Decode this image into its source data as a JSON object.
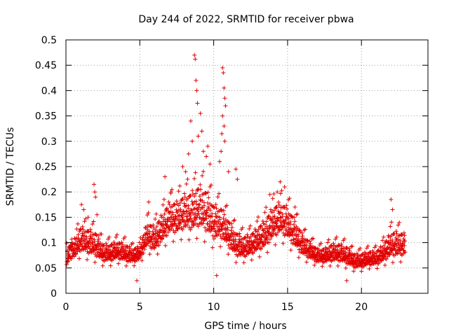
{
  "chart_data": {
    "type": "scatter",
    "title": "Day 244 of 2022, SRMTID for receiver pbwa",
    "xlabel": "GPS time / hours",
    "ylabel": "SRMTID / TECUs",
    "xlim": [
      0,
      24.5
    ],
    "ylim": [
      0,
      0.5
    ],
    "x_ticks": [
      0,
      5,
      10,
      15,
      20
    ],
    "x_tick_labels": [
      "0",
      "5",
      "10",
      "15",
      "20"
    ],
    "y_ticks": [
      0,
      0.05,
      0.1,
      0.15,
      0.2,
      0.25,
      0.3,
      0.35,
      0.4,
      0.45,
      0.5
    ],
    "y_tick_labels": [
      "0",
      "0.05",
      "0.1",
      "0.15",
      "0.2",
      "0.25",
      "0.3",
      "0.35",
      "0.4",
      "0.45",
      "0.5"
    ],
    "grid": true,
    "marker": "+",
    "marker_color": "#e00000",
    "profile": {
      "hours": [
        0,
        0.5,
        1,
        1.5,
        2,
        2.5,
        3,
        3.5,
        4,
        4.5,
        5,
        5.5,
        6,
        6.5,
        7,
        7.5,
        8,
        8.5,
        9,
        9.5,
        10,
        10.5,
        11,
        11.5,
        12,
        12.5,
        13,
        13.5,
        14,
        14.5,
        15,
        15.5,
        16,
        16.5,
        17,
        17.5,
        18,
        18.5,
        19,
        19.5,
        20,
        20.5,
        21,
        21.5,
        22,
        22.5,
        23
      ],
      "median": [
        0.075,
        0.08,
        0.1,
        0.095,
        0.09,
        0.075,
        0.075,
        0.08,
        0.075,
        0.07,
        0.075,
        0.11,
        0.1,
        0.12,
        0.14,
        0.14,
        0.15,
        0.15,
        0.16,
        0.15,
        0.13,
        0.13,
        0.11,
        0.09,
        0.085,
        0.09,
        0.1,
        0.11,
        0.13,
        0.14,
        0.13,
        0.11,
        0.09,
        0.08,
        0.07,
        0.07,
        0.075,
        0.075,
        0.07,
        0.06,
        0.06,
        0.065,
        0.065,
        0.075,
        0.09,
        0.09,
        0.09
      ],
      "spread": [
        0.02,
        0.025,
        0.035,
        0.035,
        0.035,
        0.025,
        0.025,
        0.025,
        0.025,
        0.02,
        0.02,
        0.035,
        0.035,
        0.04,
        0.045,
        0.045,
        0.05,
        0.055,
        0.06,
        0.06,
        0.05,
        0.045,
        0.04,
        0.035,
        0.03,
        0.03,
        0.035,
        0.04,
        0.045,
        0.045,
        0.045,
        0.04,
        0.03,
        0.025,
        0.02,
        0.02,
        0.025,
        0.025,
        0.025,
        0.02,
        0.02,
        0.02,
        0.02,
        0.025,
        0.035,
        0.035,
        0.03
      ]
    },
    "highlights": [
      {
        "x": 1.05,
        "y": 0.175
      },
      {
        "x": 1.2,
        "y": 0.165
      },
      {
        "x": 1.5,
        "y": 0.15
      },
      {
        "x": 1.9,
        "y": 0.215
      },
      {
        "x": 1.95,
        "y": 0.2
      },
      {
        "x": 2.0,
        "y": 0.19
      },
      {
        "x": 2.1,
        "y": 0.155
      },
      {
        "x": 5.6,
        "y": 0.18
      },
      {
        "x": 6.7,
        "y": 0.23
      },
      {
        "x": 7.1,
        "y": 0.2
      },
      {
        "x": 7.9,
        "y": 0.25
      },
      {
        "x": 8.1,
        "y": 0.24
      },
      {
        "x": 8.3,
        "y": 0.275
      },
      {
        "x": 8.45,
        "y": 0.34
      },
      {
        "x": 8.55,
        "y": 0.3
      },
      {
        "x": 8.7,
        "y": 0.47
      },
      {
        "x": 8.75,
        "y": 0.462
      },
      {
        "x": 8.8,
        "y": 0.42
      },
      {
        "x": 8.85,
        "y": 0.4
      },
      {
        "x": 8.9,
        "y": 0.375
      },
      {
        "x": 8.95,
        "y": 0.31
      },
      {
        "x": 9.1,
        "y": 0.355
      },
      {
        "x": 9.2,
        "y": 0.32
      },
      {
        "x": 9.3,
        "y": 0.28
      },
      {
        "x": 9.5,
        "y": 0.27
      },
      {
        "x": 9.6,
        "y": 0.29
      },
      {
        "x": 9.75,
        "y": 0.255
      },
      {
        "x": 10.5,
        "y": 0.28
      },
      {
        "x": 10.55,
        "y": 0.315
      },
      {
        "x": 10.6,
        "y": 0.445
      },
      {
        "x": 10.65,
        "y": 0.435
      },
      {
        "x": 10.7,
        "y": 0.405
      },
      {
        "x": 10.75,
        "y": 0.385
      },
      {
        "x": 10.8,
        "y": 0.37
      },
      {
        "x": 10.6,
        "y": 0.35
      },
      {
        "x": 10.7,
        "y": 0.33
      },
      {
        "x": 10.75,
        "y": 0.3
      },
      {
        "x": 10.4,
        "y": 0.26
      },
      {
        "x": 11.0,
        "y": 0.24
      },
      {
        "x": 11.5,
        "y": 0.245
      },
      {
        "x": 11.6,
        "y": 0.225
      },
      {
        "x": 13.8,
        "y": 0.195
      },
      {
        "x": 14.5,
        "y": 0.22
      },
      {
        "x": 14.8,
        "y": 0.21
      },
      {
        "x": 14.3,
        "y": 0.2
      },
      {
        "x": 15.5,
        "y": 0.17
      },
      {
        "x": 22.0,
        "y": 0.185
      },
      {
        "x": 22.1,
        "y": 0.165
      },
      {
        "x": 10.2,
        "y": 0.035
      },
      {
        "x": 4.8,
        "y": 0.025
      },
      {
        "x": 19.0,
        "y": 0.025
      }
    ]
  }
}
